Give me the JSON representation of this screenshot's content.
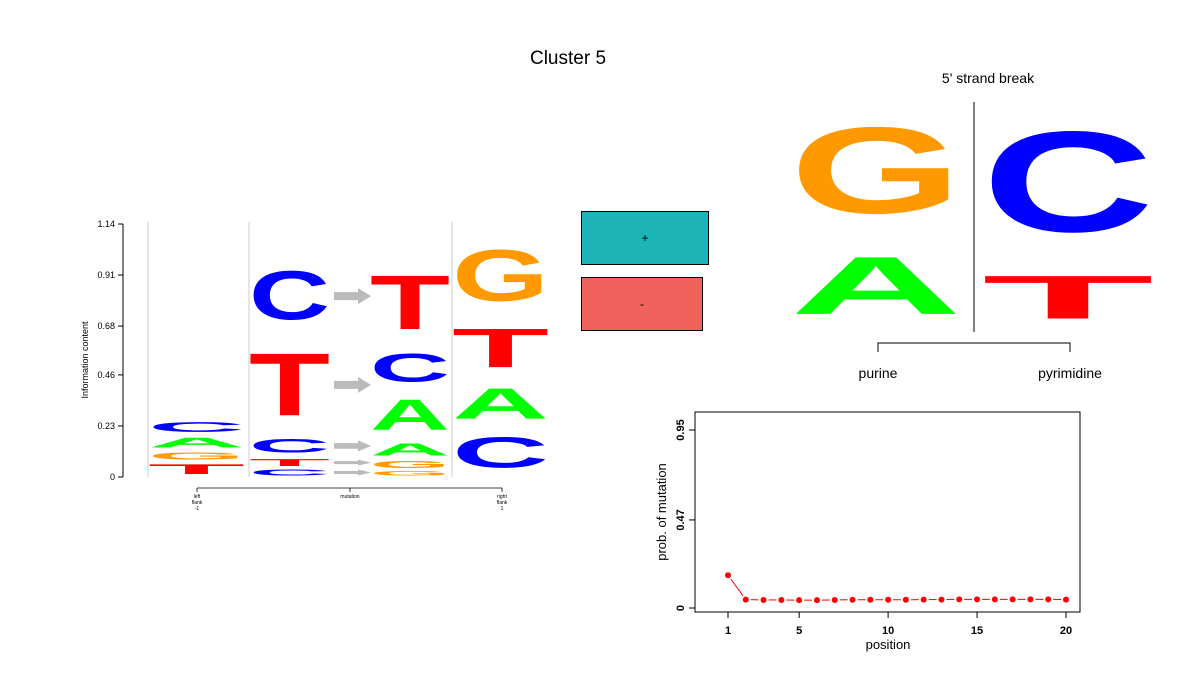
{
  "title": "Cluster 5",
  "colors": {
    "A": "#00ff00",
    "C": "#0000ff",
    "G": "#ff9900",
    "T": "#ff0000",
    "plus": "#1cb4b7",
    "minus": "#f2625d",
    "arrow": "#bbbbbb"
  },
  "legend": {
    "plus": "+",
    "minus": "-"
  },
  "chart_data": [
    {
      "type": "sequence-logo",
      "ylabel": "Information content",
      "yticks": [
        "0",
        "0.23",
        "0.46",
        "0.68",
        "0.91",
        "1.14"
      ],
      "ylim": [
        0,
        1.14
      ],
      "xlabels": [
        {
          "lines": [
            "left",
            "flank",
            "-1"
          ]
        },
        {
          "lines": [
            "mutation"
          ]
        },
        {
          "lines": [
            "right",
            "flank",
            "1"
          ]
        }
      ],
      "columns": [
        {
          "name": "left-flank",
          "stack": [
            {
              "letter": "T",
              "bits": 0.07
            },
            {
              "letter": "G",
              "bits": 0.05
            },
            {
              "letter": "A",
              "bits": 0.07
            },
            {
              "letter": "C",
              "bits": 0.07
            }
          ]
        },
        {
          "name": "ref",
          "stack": [
            {
              "letter": "C",
              "bits": 0.04
            },
            {
              "letter": "T",
              "bits": 0.05
            },
            {
              "letter": "C",
              "bits": 0.1
            },
            {
              "letter": "T",
              "bits": 0.45
            },
            {
              "letter": "C",
              "bits": 0.35
            }
          ]
        },
        {
          "name": "alt",
          "stack": [
            {
              "letter": "G",
              "bits": 0.03
            },
            {
              "letter": "G",
              "bits": 0.05
            },
            {
              "letter": "A",
              "bits": 0.09
            },
            {
              "letter": "A",
              "bits": 0.22
            },
            {
              "letter": "C",
              "bits": 0.2
            },
            {
              "letter": "T",
              "bits": 0.39
            }
          ]
        },
        {
          "name": "right-flank",
          "stack": [
            {
              "letter": "C",
              "bits": 0.22
            },
            {
              "letter": "A",
              "bits": 0.22
            },
            {
              "letter": "T",
              "bits": 0.28
            },
            {
              "letter": "G",
              "bits": 0.37
            }
          ]
        }
      ]
    },
    {
      "type": "strand-break-logo",
      "title": "5' strand break",
      "left_label": "purine",
      "right_label": "pyrimidine",
      "columns": [
        {
          "name": "purine",
          "stack": [
            {
              "letter": "A",
              "bits": 0.4
            },
            {
              "letter": "G",
              "bits": 0.6
            }
          ]
        },
        {
          "name": "pyrimidine",
          "stack": [
            {
              "letter": "T",
              "bits": 0.3
            },
            {
              "letter": "C",
              "bits": 0.7
            }
          ]
        }
      ]
    },
    {
      "type": "line",
      "xlabel": "position",
      "ylabel": "prob. of mutation",
      "xticks": [
        "1",
        "5",
        "10",
        "15",
        "20"
      ],
      "yticks": [
        "0",
        "0.47",
        "0.95"
      ],
      "xlim": [
        1,
        20
      ],
      "ylim": [
        0,
        0.95
      ],
      "x": [
        1,
        2,
        3,
        4,
        5,
        6,
        7,
        8,
        9,
        10,
        11,
        12,
        13,
        14,
        15,
        16,
        17,
        18,
        19,
        20
      ],
      "values": [
        0.175,
        0.045,
        0.043,
        0.043,
        0.042,
        0.042,
        0.043,
        0.044,
        0.044,
        0.044,
        0.044,
        0.045,
        0.045,
        0.046,
        0.046,
        0.046,
        0.046,
        0.046,
        0.046,
        0.045
      ],
      "color": "#ff0000"
    }
  ]
}
